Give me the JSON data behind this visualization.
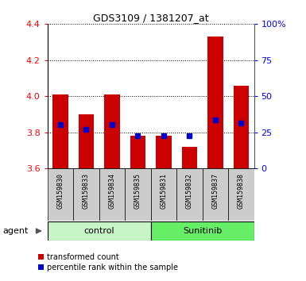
{
  "title": "GDS3109 / 1381207_at",
  "samples": [
    "GSM159830",
    "GSM159833",
    "GSM159834",
    "GSM159835",
    "GSM159831",
    "GSM159832",
    "GSM159837",
    "GSM159838"
  ],
  "red_values": [
    4.01,
    3.9,
    4.01,
    3.78,
    3.78,
    3.72,
    4.33,
    4.06
  ],
  "blue_values": [
    3.845,
    3.815,
    3.845,
    3.782,
    3.782,
    3.782,
    3.868,
    3.852
  ],
  "y_min": 3.6,
  "y_max": 4.4,
  "y_ticks": [
    3.6,
    3.8,
    4.0,
    4.2,
    4.4
  ],
  "right_y_ticks": [
    0,
    25,
    50,
    75,
    100
  ],
  "right_y_labels": [
    "0",
    "25",
    "50",
    "75",
    "100%"
  ],
  "groups": [
    {
      "label": "control",
      "start": 0,
      "end": 4,
      "color": "#c8f5c8"
    },
    {
      "label": "Sunitinib",
      "start": 4,
      "end": 8,
      "color": "#66ee66"
    }
  ],
  "bar_color": "#cc0000",
  "blue_color": "#0000cc",
  "bg_color": "#cccccc",
  "plot_bg": "#ffffff",
  "bar_width": 0.6,
  "legend_red_label": "transformed count",
  "legend_blue_label": "percentile rank within the sample",
  "agent_label": "agent"
}
